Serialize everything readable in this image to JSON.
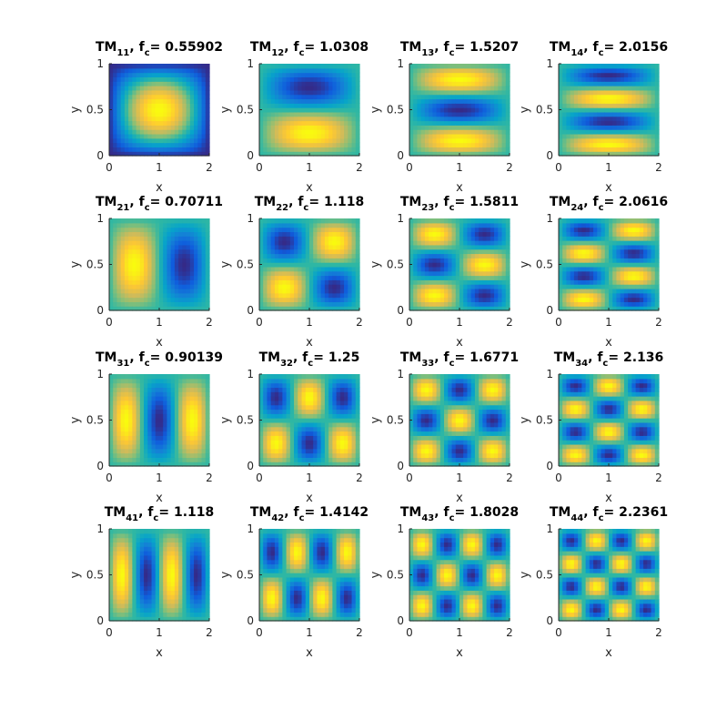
{
  "figure": {
    "x_label": "x",
    "y_label": "y",
    "x_ticks": [
      "0",
      "1",
      "2"
    ],
    "y_ticks": [
      "0",
      "0.5",
      "1"
    ],
    "colormap": "parula",
    "colormap_stops": [
      "#352a87",
      "#0f5cdd",
      "#1481d6",
      "#06a4ca",
      "#2eb7a4",
      "#87bf77",
      "#d1bb59",
      "#fec832",
      "#f9fb0e"
    ]
  },
  "chart_data": [
    {
      "type": "heatmap",
      "mode": "TM",
      "m": 1,
      "n": 1,
      "sub": "11",
      "fc": 0.55902,
      "fc_label": "0.55902",
      "x_range": [
        0,
        2
      ],
      "y_range": [
        0,
        1
      ]
    },
    {
      "type": "heatmap",
      "mode": "TM",
      "m": 1,
      "n": 2,
      "sub": "12",
      "fc": 1.0308,
      "fc_label": "1.0308",
      "x_range": [
        0,
        2
      ],
      "y_range": [
        0,
        1
      ]
    },
    {
      "type": "heatmap",
      "mode": "TM",
      "m": 1,
      "n": 3,
      "sub": "13",
      "fc": 1.5207,
      "fc_label": "1.5207",
      "x_range": [
        0,
        2
      ],
      "y_range": [
        0,
        1
      ]
    },
    {
      "type": "heatmap",
      "mode": "TM",
      "m": 1,
      "n": 4,
      "sub": "14",
      "fc": 2.0156,
      "fc_label": "2.0156",
      "x_range": [
        0,
        2
      ],
      "y_range": [
        0,
        1
      ]
    },
    {
      "type": "heatmap",
      "mode": "TM",
      "m": 2,
      "n": 1,
      "sub": "21",
      "fc": 0.70711,
      "fc_label": "0.70711",
      "x_range": [
        0,
        2
      ],
      "y_range": [
        0,
        1
      ]
    },
    {
      "type": "heatmap",
      "mode": "TM",
      "m": 2,
      "n": 2,
      "sub": "22",
      "fc": 1.118,
      "fc_label": "1.118",
      "x_range": [
        0,
        2
      ],
      "y_range": [
        0,
        1
      ]
    },
    {
      "type": "heatmap",
      "mode": "TM",
      "m": 2,
      "n": 3,
      "sub": "23",
      "fc": 1.5811,
      "fc_label": "1.5811",
      "x_range": [
        0,
        2
      ],
      "y_range": [
        0,
        1
      ]
    },
    {
      "type": "heatmap",
      "mode": "TM",
      "m": 2,
      "n": 4,
      "sub": "24",
      "fc": 2.0616,
      "fc_label": "2.0616",
      "x_range": [
        0,
        2
      ],
      "y_range": [
        0,
        1
      ]
    },
    {
      "type": "heatmap",
      "mode": "TM",
      "m": 3,
      "n": 1,
      "sub": "31",
      "fc": 0.90139,
      "fc_label": "0.90139",
      "x_range": [
        0,
        2
      ],
      "y_range": [
        0,
        1
      ]
    },
    {
      "type": "heatmap",
      "mode": "TM",
      "m": 3,
      "n": 2,
      "sub": "32",
      "fc": 1.25,
      "fc_label": "1.25",
      "x_range": [
        0,
        2
      ],
      "y_range": [
        0,
        1
      ]
    },
    {
      "type": "heatmap",
      "mode": "TM",
      "m": 3,
      "n": 3,
      "sub": "33",
      "fc": 1.6771,
      "fc_label": "1.6771",
      "x_range": [
        0,
        2
      ],
      "y_range": [
        0,
        1
      ]
    },
    {
      "type": "heatmap",
      "mode": "TM",
      "m": 3,
      "n": 4,
      "sub": "34",
      "fc": 2.136,
      "fc_label": "2.136",
      "x_range": [
        0,
        2
      ],
      "y_range": [
        0,
        1
      ]
    },
    {
      "type": "heatmap",
      "mode": "TM",
      "m": 4,
      "n": 1,
      "sub": "41",
      "fc": 1.118,
      "fc_label": "1.118",
      "x_range": [
        0,
        2
      ],
      "y_range": [
        0,
        1
      ]
    },
    {
      "type": "heatmap",
      "mode": "TM",
      "m": 4,
      "n": 2,
      "sub": "42",
      "fc": 1.4142,
      "fc_label": "1.4142",
      "x_range": [
        0,
        2
      ],
      "y_range": [
        0,
        1
      ]
    },
    {
      "type": "heatmap",
      "mode": "TM",
      "m": 4,
      "n": 3,
      "sub": "43",
      "fc": 1.8028,
      "fc_label": "1.8028",
      "x_range": [
        0,
        2
      ],
      "y_range": [
        0,
        1
      ]
    },
    {
      "type": "heatmap",
      "mode": "TM",
      "m": 4,
      "n": 4,
      "sub": "44",
      "fc": 2.2361,
      "fc_label": "2.2361",
      "x_range": [
        0,
        2
      ],
      "y_range": [
        0,
        1
      ]
    }
  ]
}
